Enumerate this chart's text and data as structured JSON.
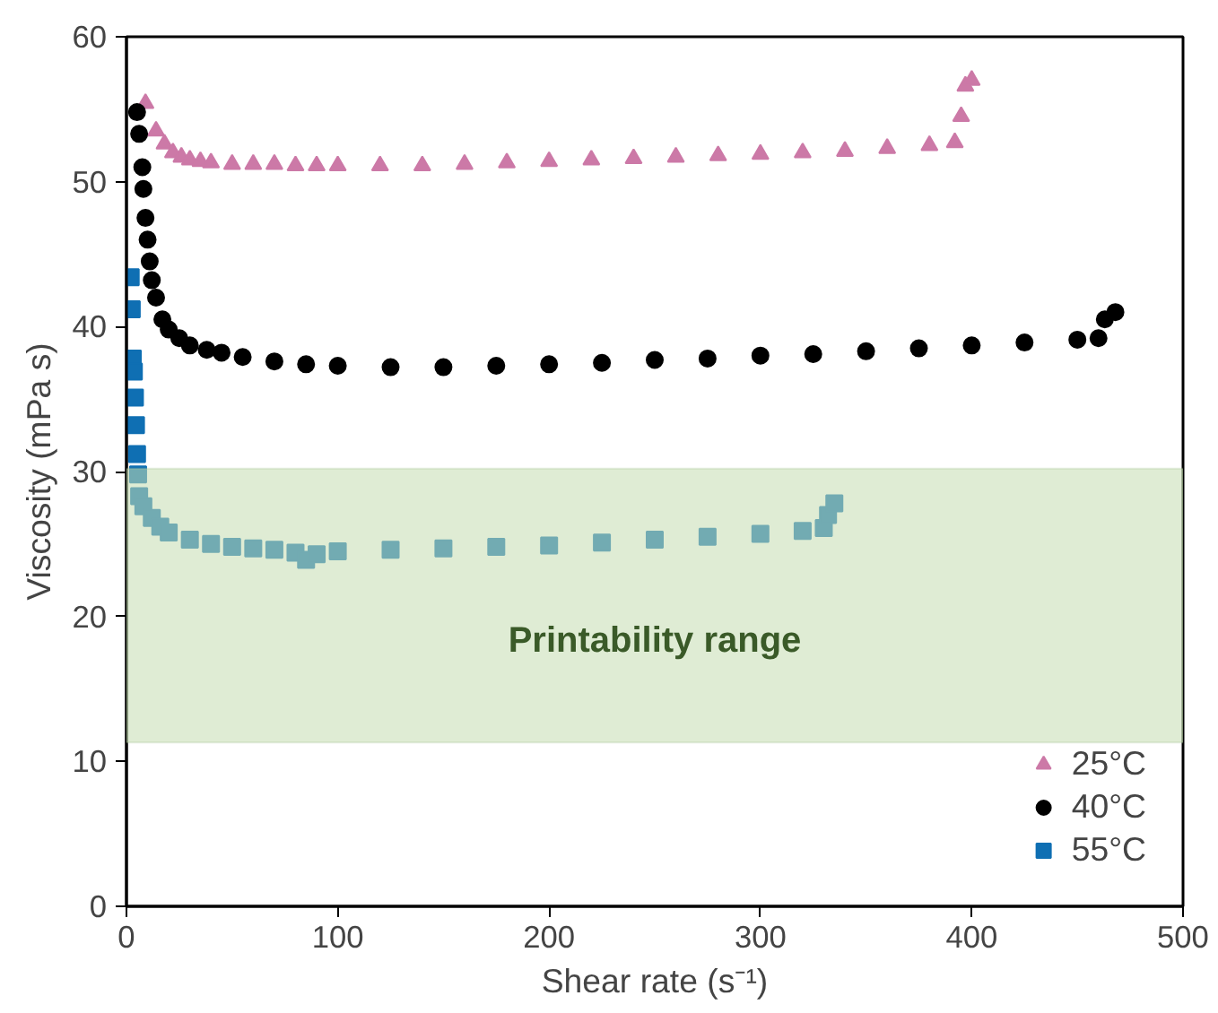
{
  "chart_data": {
    "type": "scatter",
    "xlabel": "Shear rate (s⁻¹)",
    "ylabel": "Viscosity (mPa s)",
    "xlim": [
      0,
      500
    ],
    "xticks": [
      0,
      100,
      200,
      300,
      400,
      500
    ],
    "ylim": [
      0,
      60
    ],
    "yticks": [
      0,
      10,
      20,
      30,
      40,
      50,
      60
    ],
    "grid": false,
    "legend": "bottom right",
    "bands": [
      {
        "axis": "y",
        "from": 11.3,
        "to": 30.2,
        "label": "Printability range",
        "color": "#c4dcb0"
      }
    ],
    "series": [
      {
        "name": "25°C",
        "color": "#cc79a7",
        "marker": "triangle",
        "x": [
          9,
          14,
          18,
          22,
          26,
          30,
          35,
          40,
          50,
          60,
          70,
          80,
          90,
          100,
          120,
          140,
          160,
          180,
          200,
          220,
          240,
          260,
          280,
          300,
          320,
          340,
          360,
          380,
          392,
          395,
          397,
          400
        ],
        "values": [
          55.4,
          53.5,
          52.6,
          52.0,
          51.7,
          51.5,
          51.4,
          51.3,
          51.2,
          51.2,
          51.2,
          51.1,
          51.1,
          51.1,
          51.1,
          51.1,
          51.2,
          51.3,
          51.4,
          51.5,
          51.6,
          51.7,
          51.8,
          51.9,
          52.0,
          52.1,
          52.3,
          52.5,
          52.7,
          54.5,
          56.6,
          57.0
        ]
      },
      {
        "name": "40°C",
        "color": "#000000",
        "marker": "circle",
        "x": [
          5,
          6,
          7.5,
          8,
          9,
          10,
          11,
          12,
          14,
          17,
          20,
          25,
          30,
          38,
          45,
          55,
          70,
          85,
          100,
          125,
          150,
          175,
          200,
          225,
          250,
          275,
          300,
          325,
          350,
          375,
          400,
          425,
          450,
          460,
          463,
          468
        ],
        "values": [
          54.8,
          53.3,
          51.0,
          49.5,
          47.5,
          46.0,
          44.5,
          43.2,
          42.0,
          40.5,
          39.8,
          39.2,
          38.7,
          38.4,
          38.2,
          37.9,
          37.6,
          37.4,
          37.3,
          37.2,
          37.2,
          37.3,
          37.4,
          37.5,
          37.7,
          37.8,
          38.0,
          38.1,
          38.3,
          38.5,
          38.7,
          38.9,
          39.1,
          39.2,
          40.5,
          41.0
        ]
      },
      {
        "name": "55°C",
        "color": "#0f6fb3",
        "marker": "square",
        "x": [
          2,
          2.5,
          3,
          3.5,
          4,
          4.5,
          5,
          5.5,
          6,
          8,
          12,
          16,
          20,
          30,
          40,
          50,
          60,
          70,
          80,
          85,
          90,
          100,
          125,
          150,
          175,
          200,
          225,
          250,
          275,
          300,
          320,
          330,
          332,
          335
        ],
        "values": [
          43.4,
          41.2,
          37.8,
          36.9,
          35.1,
          33.2,
          31.2,
          29.8,
          28.3,
          27.6,
          26.8,
          26.2,
          25.8,
          25.3,
          25.0,
          24.8,
          24.7,
          24.6,
          24.4,
          23.9,
          24.3,
          24.5,
          24.6,
          24.7,
          24.8,
          24.9,
          25.1,
          25.3,
          25.5,
          25.7,
          25.9,
          26.1,
          27.0,
          27.8
        ]
      }
    ]
  }
}
